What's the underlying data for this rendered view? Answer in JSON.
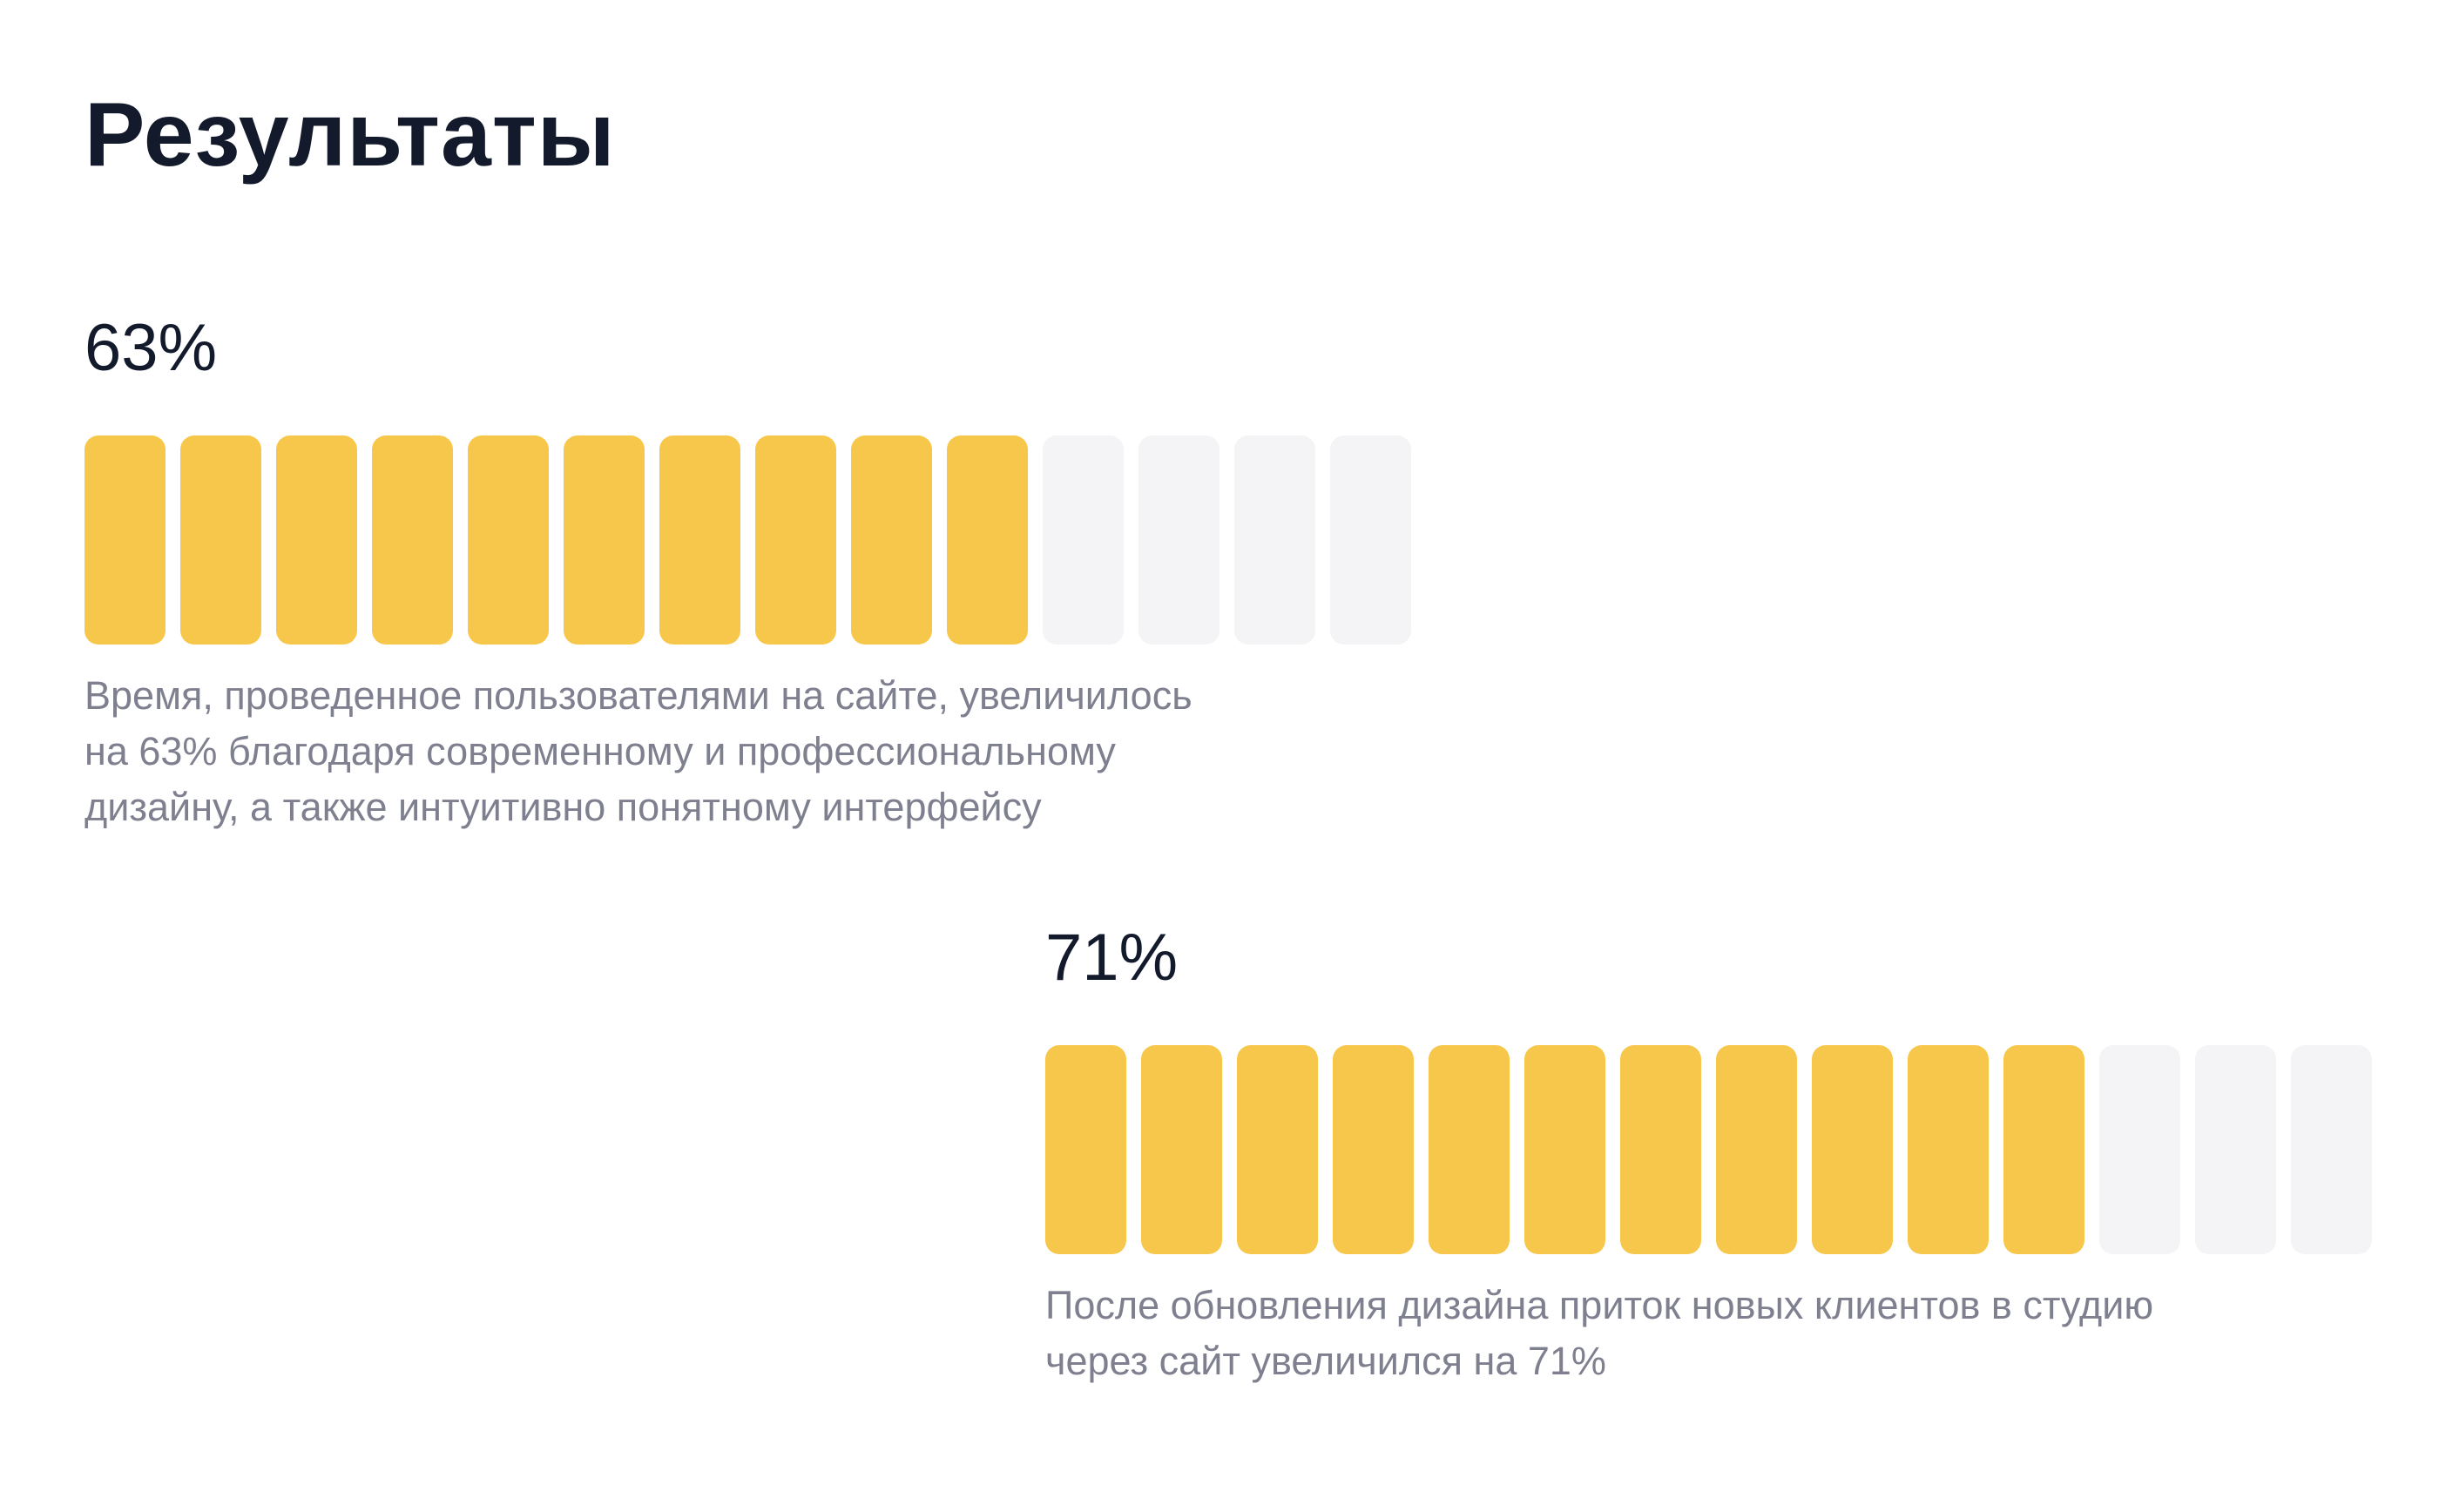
{
  "header": {
    "title": "Результаты"
  },
  "colors": {
    "filled_segment": "#f6c74a",
    "empty_segment": "#f4f4f6",
    "title_text": "#121a2c",
    "description_text": "#7f808f"
  },
  "stats": [
    {
      "value": "63%",
      "filled_segments": 10,
      "total_segments": 14,
      "description_lines": [
        "Время, проведенное пользователями на сайте, увеличилось",
        "на 63% благодаря современному и профессиональному",
        "дизайну, а также интуитивно понятному интерфейсу"
      ]
    },
    {
      "value": "71%",
      "filled_segments": 11,
      "total_segments": 14,
      "description_lines": [
        "После обновления дизайна приток новых клиентов в студию",
        "через сайт увеличился на 71%"
      ]
    }
  ]
}
